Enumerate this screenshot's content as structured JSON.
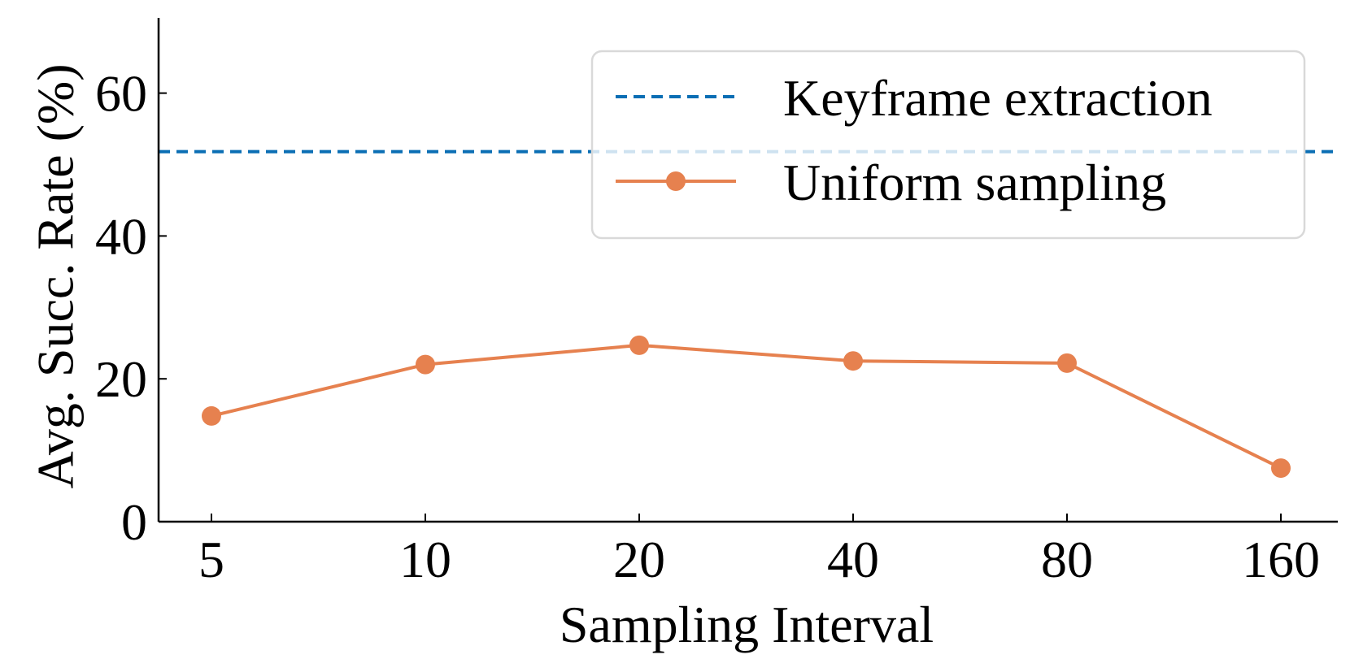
{
  "chart_data": {
    "type": "line",
    "title": "",
    "xlabel": "Sampling Interval",
    "ylabel": "Avg. Succ. Rate (%)",
    "categories": [
      "5",
      "10",
      "20",
      "40",
      "80",
      "160"
    ],
    "ylim": [
      0,
      70
    ],
    "yticks": [
      "0",
      "20",
      "40",
      "60"
    ],
    "grid": false,
    "legend": "top-right",
    "series": [
      {
        "name": "Uniform sampling",
        "kind": "line-markers",
        "color": "#E6814F",
        "values": [
          14.8,
          22.0,
          24.7,
          22.5,
          22.2,
          7.5
        ]
      }
    ],
    "reference_lines": [
      {
        "name": "Keyframe extraction",
        "kind": "dashed-horizontal",
        "color": "#0A6EB4",
        "value": 51.8
      }
    ]
  }
}
